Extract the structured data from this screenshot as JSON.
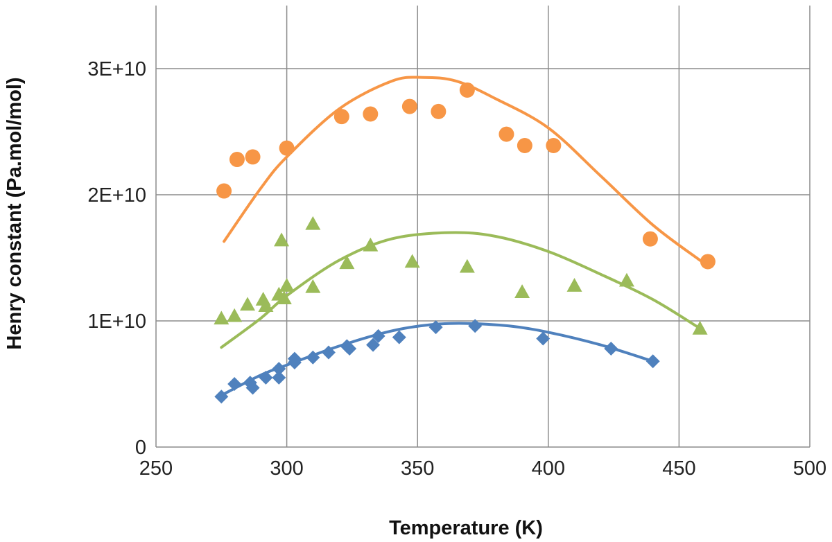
{
  "chart_data": {
    "type": "scatter",
    "title": "",
    "xlabel": "Temperature (K)",
    "ylabel": "Henry constant (Pa.mol/mol)",
    "xlim": [
      250,
      500
    ],
    "ylim": [
      0,
      35000000000
    ],
    "grid": true,
    "legend": "none",
    "x_ticks": [
      250,
      300,
      350,
      400,
      450,
      500
    ],
    "x_tick_labels": [
      "250",
      "300",
      "350",
      "400",
      "450",
      "500"
    ],
    "y_ticks": [
      0,
      10000000000,
      20000000000,
      30000000000
    ],
    "y_tick_labels": [
      "0",
      "1E+10",
      "2E+10",
      "3E+10"
    ],
    "series": [
      {
        "marker": "circle",
        "color": "#f79646",
        "points": [
          [
            276,
            20300000000
          ],
          [
            281,
            22800000000
          ],
          [
            287,
            23000000000
          ],
          [
            300,
            23700000000
          ],
          [
            321,
            26200000000
          ],
          [
            332,
            26400000000
          ],
          [
            347,
            27000000000
          ],
          [
            358,
            26600000000
          ],
          [
            369,
            28300000000
          ],
          [
            384,
            24800000000
          ],
          [
            391,
            23900000000
          ],
          [
            402,
            23900000000
          ],
          [
            439,
            16500000000
          ],
          [
            461,
            14700000000
          ]
        ],
        "fit": [
          [
            276,
            16300000000
          ],
          [
            290,
            20500000000
          ],
          [
            300,
            23000000000
          ],
          [
            320,
            26800000000
          ],
          [
            340,
            29000000000
          ],
          [
            352,
            29300000000
          ],
          [
            365,
            29000000000
          ],
          [
            380,
            27600000000
          ],
          [
            400,
            25300000000
          ],
          [
            420,
            21500000000
          ],
          [
            440,
            17600000000
          ],
          [
            458,
            14800000000
          ]
        ]
      },
      {
        "marker": "triangle",
        "color": "#9bbb59",
        "points": [
          [
            275,
            10200000000
          ],
          [
            280,
            10400000000
          ],
          [
            285,
            11300000000
          ],
          [
            291,
            11700000000
          ],
          [
            292,
            11200000000
          ],
          [
            297,
            12100000000
          ],
          [
            298,
            16400000000
          ],
          [
            299,
            11800000000
          ],
          [
            300,
            12800000000
          ],
          [
            310,
            17700000000
          ],
          [
            310,
            12700000000
          ],
          [
            323,
            14600000000
          ],
          [
            332,
            16000000000
          ],
          [
            348,
            14700000000
          ],
          [
            369,
            14300000000
          ],
          [
            390,
            12300000000
          ],
          [
            410,
            12800000000
          ],
          [
            430,
            13200000000
          ],
          [
            458,
            9400000000
          ]
        ],
        "fit": [
          [
            275,
            7900000000
          ],
          [
            290,
            10200000000
          ],
          [
            300,
            12000000000
          ],
          [
            320,
            14800000000
          ],
          [
            340,
            16500000000
          ],
          [
            362,
            17000000000
          ],
          [
            380,
            16700000000
          ],
          [
            400,
            15500000000
          ],
          [
            420,
            13700000000
          ],
          [
            440,
            11700000000
          ],
          [
            458,
            9400000000
          ]
        ]
      },
      {
        "marker": "diamond",
        "color": "#4f81bd",
        "points": [
          [
            275,
            4000000000
          ],
          [
            280,
            5000000000
          ],
          [
            286,
            5100000000
          ],
          [
            287,
            4700000000
          ],
          [
            292,
            5500000000
          ],
          [
            297,
            6200000000
          ],
          [
            297,
            5500000000
          ],
          [
            303,
            7000000000
          ],
          [
            303,
            6700000000
          ],
          [
            310,
            7100000000
          ],
          [
            316,
            7500000000
          ],
          [
            323,
            8000000000
          ],
          [
            324,
            7800000000
          ],
          [
            333,
            8100000000
          ],
          [
            335,
            8800000000
          ],
          [
            343,
            8700000000
          ],
          [
            357,
            9500000000
          ],
          [
            372,
            9600000000
          ],
          [
            398,
            8600000000
          ],
          [
            424,
            7800000000
          ],
          [
            440,
            6800000000
          ]
        ],
        "fit": [
          [
            275,
            4100000000
          ],
          [
            290,
            5700000000
          ],
          [
            300,
            6500000000
          ],
          [
            320,
            8000000000
          ],
          [
            340,
            9200000000
          ],
          [
            355,
            9700000000
          ],
          [
            368,
            9800000000
          ],
          [
            385,
            9600000000
          ],
          [
            400,
            9100000000
          ],
          [
            420,
            8100000000
          ],
          [
            440,
            6800000000
          ]
        ]
      }
    ]
  }
}
